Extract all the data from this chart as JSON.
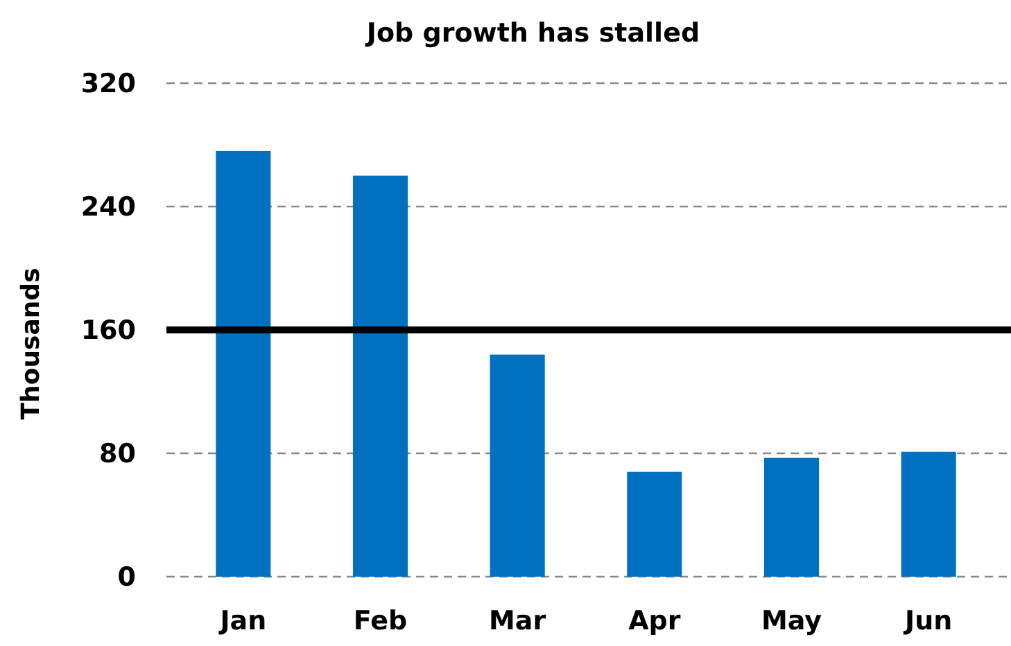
{
  "chart_data": {
    "type": "bar",
    "title": "Job growth has stalled",
    "ylabel": "Thousands",
    "categories": [
      "Jan",
      "Feb",
      "Mar",
      "Apr",
      "May",
      "Jun"
    ],
    "values": [
      276,
      260,
      144,
      68,
      77,
      81
    ],
    "color": "#0070c0",
    "ylim": [
      0,
      320
    ],
    "yticks": [
      0,
      80,
      160,
      240,
      320
    ],
    "grid": "y",
    "ref_lines": [
      {
        "axis": "y",
        "value": 160,
        "color": "#000000"
      }
    ]
  }
}
